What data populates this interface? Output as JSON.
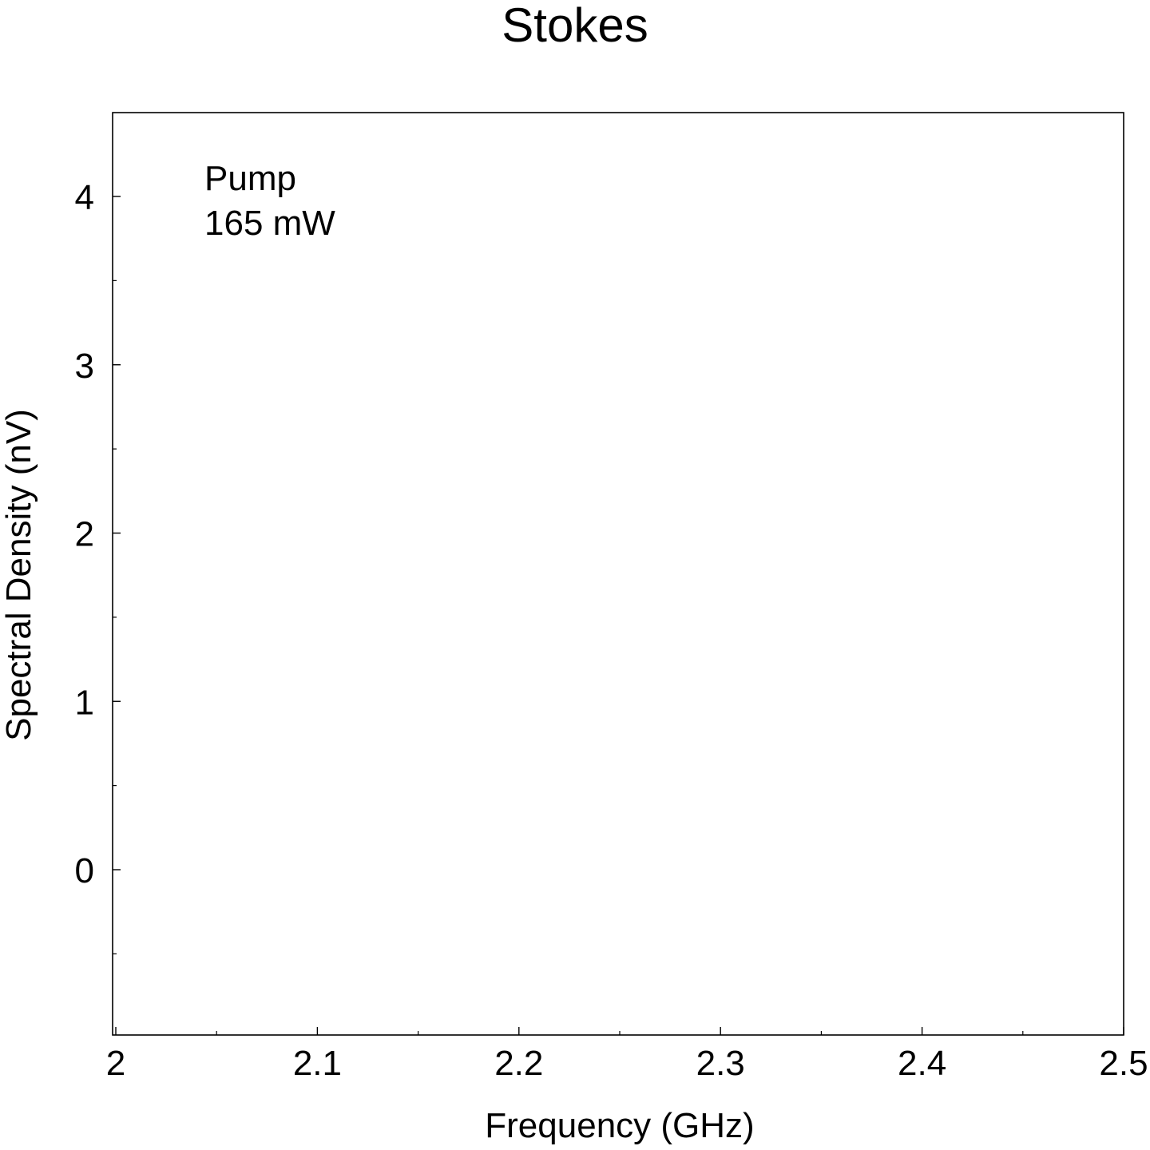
{
  "chart_data": {
    "type": "line",
    "title": "Stokes",
    "xlabel": "Frequency (GHz)",
    "ylabel": "Spectral Density (nV)",
    "xlim": [
      2.0,
      2.5
    ],
    "ylim": [
      -0.95,
      4.5
    ],
    "x_ticks": [
      "2",
      "2.1",
      "2.2",
      "2.3",
      "2.4",
      "2.5"
    ],
    "y_ticks": [
      "0",
      "1",
      "2",
      "3",
      "4"
    ],
    "annotation": [
      "Pump",
      "165 mW"
    ],
    "series": [],
    "grid": false
  }
}
